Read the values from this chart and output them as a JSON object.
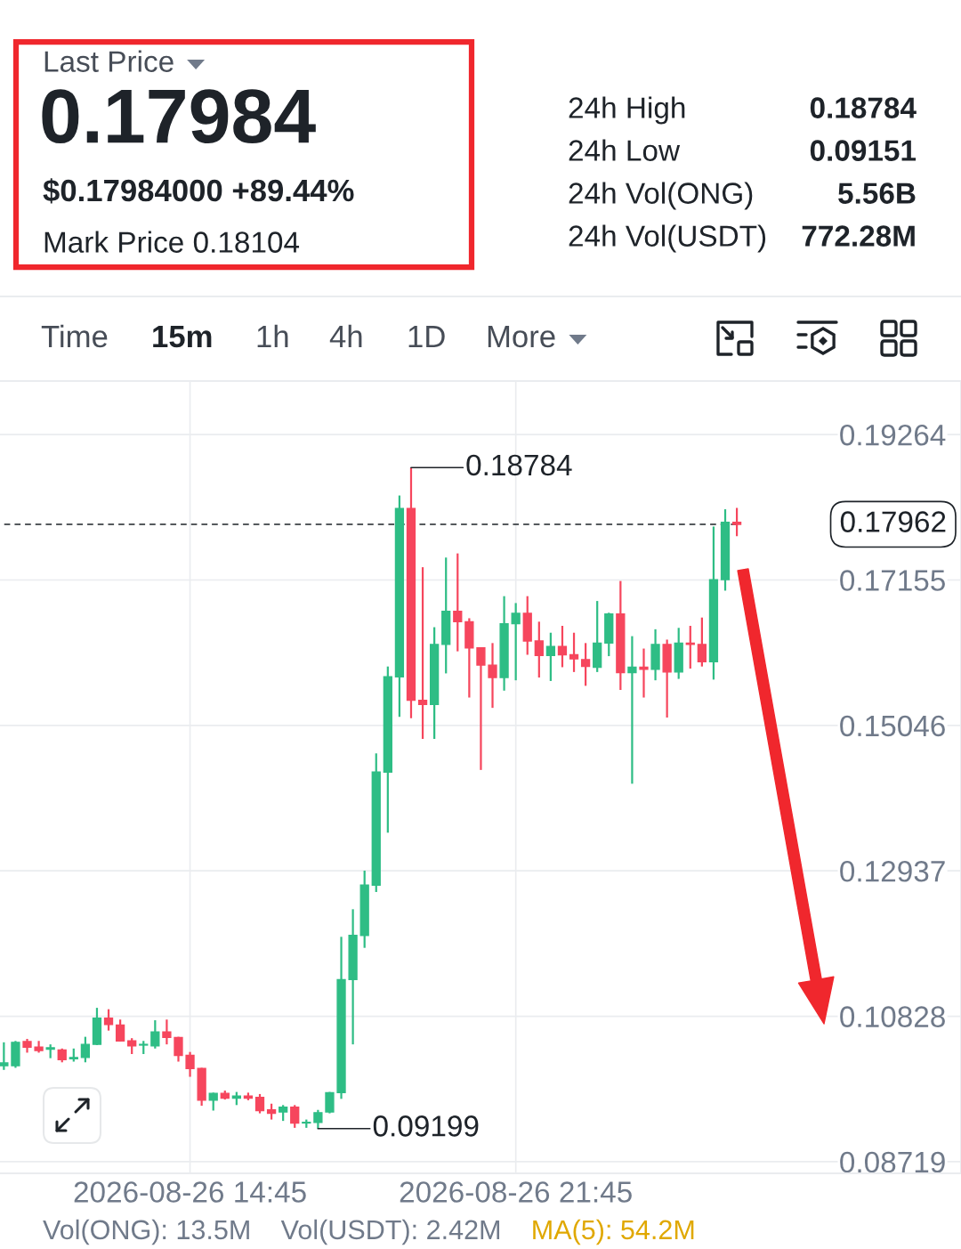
{
  "chart_data": [
    {
      "type": "other",
      "annotations": [
        "Last Price",
        "0.17984",
        "$0.17984000 +89.44%",
        "Mark Price 0.18104",
        "24h High",
        "0.18784",
        "24h Low",
        "0.09151",
        "24h Vol(ONG)",
        "5.56B",
        "24h Vol(USDT)",
        "772.28M",
        "Time",
        "15m",
        "1h",
        "4h",
        "1D",
        "More"
      ]
    },
    {
      "type": "candlestick",
      "x": [
        "2026-08-26T10:45",
        "2026-08-26T11:00",
        "2026-08-26T11:15",
        "2026-08-26T11:30",
        "2026-08-26T11:45",
        "2026-08-26T12:00",
        "2026-08-26T12:15",
        "2026-08-26T12:30",
        "2026-08-26T12:45",
        "2026-08-26T13:00",
        "2026-08-26T13:15",
        "2026-08-26T13:30",
        "2026-08-26T13:45",
        "2026-08-26T14:00",
        "2026-08-26T14:15",
        "2026-08-26T14:30",
        "2026-08-26T14:45",
        "2026-08-26T15:00",
        "2026-08-26T15:15",
        "2026-08-26T15:30",
        "2026-08-26T15:45",
        "2026-08-26T16:00",
        "2026-08-26T16:15",
        "2026-08-26T16:30",
        "2026-08-26T16:45",
        "2026-08-26T17:00",
        "2026-08-26T17:15",
        "2026-08-26T17:30",
        "2026-08-26T17:45",
        "2026-08-26T18:00",
        "2026-08-26T18:15",
        "2026-08-26T18:30",
        "2026-08-26T18:45",
        "2026-08-26T19:00",
        "2026-08-26T19:15",
        "2026-08-26T19:30",
        "2026-08-26T19:45",
        "2026-08-26T20:00",
        "2026-08-26T20:15",
        "2026-08-26T20:30",
        "2026-08-26T20:45",
        "2026-08-26T21:00",
        "2026-08-26T21:15",
        "2026-08-26T21:30",
        "2026-08-26T21:45",
        "2026-08-26T22:00",
        "2026-08-26T22:15",
        "2026-08-26T22:30",
        "2026-08-26T22:45",
        "2026-08-26T23:00",
        "2026-08-26T23:15",
        "2026-08-26T23:30",
        "2026-08-26T23:45",
        "2026-08-27T00:00",
        "2026-08-27T00:15",
        "2026-08-27T00:30",
        "2026-08-27T00:45",
        "2026-08-27T01:00",
        "2026-08-27T01:15",
        "2026-08-27T01:30",
        "2026-08-27T01:45",
        "2026-08-27T02:00",
        "2026-08-27T02:15",
        "2026-08-27T02:30"
      ],
      "ohlc": [
        [
          0.1011,
          0.1045,
          0.1005,
          0.1015
        ],
        [
          0.1011,
          0.1047,
          0.1008,
          0.1045
        ],
        [
          0.1046,
          0.105,
          0.103,
          0.1038
        ],
        [
          0.1038,
          0.1047,
          0.103,
          0.1033
        ],
        [
          0.1035,
          0.1042,
          0.1022,
          0.1037
        ],
        [
          0.1034,
          0.1036,
          0.1016,
          0.102
        ],
        [
          0.1021,
          0.1036,
          0.1017,
          0.1023
        ],
        [
          0.1023,
          0.1053,
          0.1016,
          0.1042
        ],
        [
          0.1042,
          0.1095,
          0.1041,
          0.108
        ],
        [
          0.108,
          0.1093,
          0.1062,
          0.1071
        ],
        [
          0.107,
          0.1078,
          0.1046,
          0.1047
        ],
        [
          0.1047,
          0.1051,
          0.1028,
          0.104
        ],
        [
          0.1041,
          0.1047,
          0.1028,
          0.1042
        ],
        [
          0.104,
          0.1077,
          0.1036,
          0.106
        ],
        [
          0.106,
          0.1078,
          0.1042,
          0.1052
        ],
        [
          0.1052,
          0.1053,
          0.1017,
          0.1026
        ],
        [
          0.1026,
          0.1031,
          0.0995,
          0.1007
        ],
        [
          0.1007,
          0.1008,
          0.0953,
          0.0961
        ],
        [
          0.0961,
          0.0972,
          0.0946,
          0.0971
        ],
        [
          0.0971,
          0.0975,
          0.0962,
          0.0964
        ],
        [
          0.0964,
          0.0973,
          0.0954,
          0.0967
        ],
        [
          0.0967,
          0.0972,
          0.0961,
          0.0964
        ],
        [
          0.0965,
          0.097,
          0.0942,
          0.0946
        ],
        [
          0.0947,
          0.0956,
          0.0933,
          0.0942
        ],
        [
          0.0944,
          0.0954,
          0.0931,
          0.0951
        ],
        [
          0.0951,
          0.0954,
          0.0921,
          0.0928
        ],
        [
          0.0928,
          0.0933,
          0.0921,
          0.0929
        ],
        [
          0.0929,
          0.0947,
          0.09199,
          0.0943
        ],
        [
          0.0944,
          0.0973,
          0.0942,
          0.0972
        ],
        [
          0.0972,
          0.1198,
          0.0963,
          0.1136
        ],
        [
          0.1136,
          0.1238,
          0.1042,
          0.12
        ],
        [
          0.12,
          0.1294,
          0.1182,
          0.1273
        ],
        [
          0.1273,
          0.1464,
          0.1263,
          0.1437
        ],
        [
          0.1437,
          0.159,
          0.1349,
          0.1575
        ],
        [
          0.1575,
          0.1838,
          0.1517,
          0.1819
        ],
        [
          0.1819,
          0.18784,
          0.1515,
          0.1541
        ],
        [
          0.1541,
          0.1734,
          0.1485,
          0.1535
        ],
        [
          0.1535,
          0.1647,
          0.1485,
          0.1622
        ],
        [
          0.1622,
          0.1748,
          0.158,
          0.167
        ],
        [
          0.167,
          0.1754,
          0.1612,
          0.1655
        ],
        [
          0.1655,
          0.166,
          0.1545,
          0.1617
        ],
        [
          0.1617,
          0.1618,
          0.144,
          0.1592
        ],
        [
          0.1592,
          0.1624,
          0.153,
          0.1574
        ],
        [
          0.1574,
          0.1692,
          0.1555,
          0.1652
        ],
        [
          0.1652,
          0.1682,
          0.157,
          0.1667
        ],
        [
          0.1667,
          0.1692,
          0.1607,
          0.1627
        ],
        [
          0.1627,
          0.1655,
          0.1574,
          0.1606
        ],
        [
          0.1606,
          0.1639,
          0.1569,
          0.1619
        ],
        [
          0.1619,
          0.1649,
          0.1589,
          0.1607
        ],
        [
          0.1607,
          0.1639,
          0.1582,
          0.1601
        ],
        [
          0.16,
          0.1624,
          0.1562,
          0.159
        ],
        [
          0.1589,
          0.1685,
          0.1582,
          0.1624
        ],
        [
          0.1624,
          0.1668,
          0.1605,
          0.1666
        ],
        [
          0.1666,
          0.1714,
          0.1556,
          0.1581
        ],
        [
          0.1581,
          0.1634,
          0.142,
          0.1589
        ],
        [
          0.1589,
          0.1616,
          0.1545,
          0.1586
        ],
        [
          0.1586,
          0.1644,
          0.157,
          0.1622
        ],
        [
          0.1622,
          0.1629,
          0.1516,
          0.1582
        ],
        [
          0.1582,
          0.1646,
          0.1572,
          0.1624
        ],
        [
          0.1624,
          0.1649,
          0.1587,
          0.1622
        ],
        [
          0.1622,
          0.1661,
          0.159,
          0.1597
        ],
        [
          0.1597,
          0.1793,
          0.1571,
          0.1716
        ],
        [
          0.1716,
          0.1818,
          0.17,
          0.1799
        ],
        [
          0.1799,
          0.182,
          0.1779,
          0.17962
        ]
      ],
      "colors": [
        "#2ebd85",
        "#2ebd85",
        "#f6465d",
        "#f6465d",
        "#2ebd85",
        "#f6465d",
        "#2ebd85",
        "#2ebd85",
        "#2ebd85",
        "#f6465d",
        "#f6465d",
        "#f6465d",
        "#2ebd85",
        "#2ebd85",
        "#f6465d",
        "#f6465d",
        "#f6465d",
        "#f6465d",
        "#2ebd85",
        "#f6465d",
        "#2ebd85",
        "#f6465d",
        "#f6465d",
        "#f6465d",
        "#2ebd85",
        "#f6465d",
        "#2ebd85",
        "#2ebd85",
        "#2ebd85",
        "#2ebd85",
        "#2ebd85",
        "#2ebd85",
        "#2ebd85",
        "#2ebd85",
        "#2ebd85",
        "#f6465d",
        "#f6465d",
        "#2ebd85",
        "#2ebd85",
        "#f6465d",
        "#f6465d",
        "#f6465d",
        "#f6465d",
        "#2ebd85",
        "#2ebd85",
        "#f6465d",
        "#f6465d",
        "#2ebd85",
        "#f6465d",
        "#f6465d",
        "#f6465d",
        "#2ebd85",
        "#2ebd85",
        "#f6465d",
        "#2ebd85",
        "#f6465d",
        "#2ebd85",
        "#f6465d",
        "#2ebd85",
        "#f6465d",
        "#f6465d",
        "#2ebd85",
        "#2ebd85",
        "#f6465d"
      ],
      "xlim": [
        "2026-08-26T10:40",
        "2026-08-27T07:19"
      ],
      "xticks": [
        {
          "value": "2026-08-26T14:45",
          "label": "2026-08-26 14:45"
        },
        {
          "value": "2026-08-26T21:45",
          "label": "2026-08-26 21:45"
        }
      ],
      "ylim": [
        0.0855,
        0.2004
      ],
      "yticks": [
        0.08719,
        0.10828,
        0.12937,
        0.15046,
        0.17155,
        0.19264
      ],
      "grid": true,
      "ref_lines": [
        {
          "axis": "y",
          "value": 0.17962,
          "label": "0.17962",
          "line_style": "dashed",
          "color": "#1e2329"
        }
      ],
      "annotations": [
        {
          "text": "0.18784",
          "x": "2026-08-26T19:30",
          "y": 0.18784
        },
        {
          "text": "0.09199",
          "x": "2026-08-26T17:30",
          "y": 0.09199
        },
        "Vol(ONG): 13.5M",
        "Vol(USDT): 2.42M",
        "MA(5): 54.2M"
      ]
    }
  ]
}
